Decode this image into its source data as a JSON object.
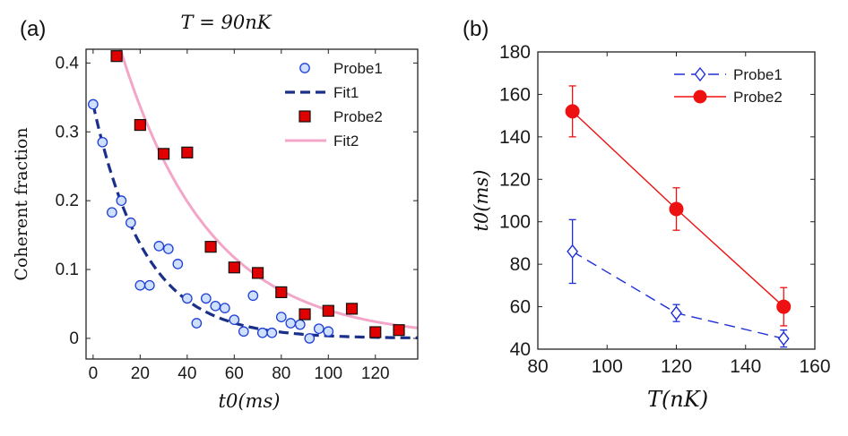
{
  "chart_data": [
    {
      "type": "scatter",
      "panel_label": "(a)",
      "title": "T = 90nK",
      "xlabel": "t0(ms)",
      "ylabel": "Coherent fraction",
      "xlim": [
        -3,
        138
      ],
      "ylim": [
        -0.03,
        0.42
      ],
      "xticks": [
        0,
        20,
        40,
        60,
        80,
        100,
        120
      ],
      "yticks": [
        0,
        0.1,
        0.2,
        0.3,
        0.4
      ],
      "ytick_labels": [
        "0",
        "0.1",
        "0.2",
        "0.3",
        "0.4"
      ],
      "legend_position": "top-right",
      "series": [
        {
          "name": "Probe1",
          "kind": "points",
          "marker": "circle",
          "color": "#1f3fd6",
          "x": [
            0,
            4,
            8,
            12,
            16,
            20,
            24,
            28,
            32,
            36,
            40,
            44,
            48,
            52,
            56,
            60,
            64,
            68,
            72,
            76,
            80,
            84,
            88,
            92,
            96,
            100
          ],
          "y": [
            0.34,
            0.285,
            0.183,
            0.2,
            0.168,
            0.077,
            0.077,
            0.134,
            0.13,
            0.108,
            0.058,
            0.022,
            0.058,
            0.047,
            0.044,
            0.027,
            0.01,
            0.062,
            0.008,
            0.008,
            0.031,
            0.022,
            0.02,
            0.0,
            0.014,
            0.01
          ]
        },
        {
          "name": "Fit1",
          "kind": "curve",
          "style": "dashed",
          "color": "#1a2f8a",
          "model": "a*exp(-x/tau)",
          "params": {
            "a": 0.34,
            "tau": 22
          }
        },
        {
          "name": "Probe2",
          "kind": "points",
          "marker": "square",
          "color": "#e00000",
          "x": [
            10,
            20,
            30,
            40,
            50,
            60,
            70,
            80,
            90,
            100,
            110,
            120,
            130
          ],
          "y": [
            0.41,
            0.31,
            0.268,
            0.27,
            0.133,
            0.103,
            0.095,
            0.067,
            0.035,
            0.04,
            0.043,
            0.009,
            0.012
          ]
        },
        {
          "name": "Fit2",
          "kind": "curve",
          "style": "solid",
          "color": "#f3a6c8",
          "model": "a*exp(-x/tau)",
          "params": {
            "a": 0.57,
            "tau": 38
          }
        }
      ]
    },
    {
      "type": "line",
      "panel_label": "(b)",
      "title": "",
      "xlabel": "T(nK)",
      "ylabel": "t0(ms)",
      "xlim": [
        80,
        160
      ],
      "ylim": [
        40,
        180
      ],
      "xticks": [
        80,
        100,
        120,
        140,
        160
      ],
      "yticks": [
        40,
        60,
        80,
        100,
        120,
        140,
        160,
        180
      ],
      "legend_position": "top-right",
      "series": [
        {
          "name": "Probe1",
          "marker": "diamond",
          "style": "dashed",
          "color": "#1f2fd6",
          "x": [
            90,
            120,
            151
          ],
          "y": [
            86,
            57,
            45
          ],
          "yerr": [
            15,
            4,
            4
          ]
        },
        {
          "name": "Probe2",
          "marker": "circle",
          "style": "solid",
          "color": "#ee1111",
          "x": [
            90,
            120,
            151
          ],
          "y": [
            152,
            106,
            60
          ],
          "yerr": [
            12,
            10,
            9
          ]
        }
      ]
    }
  ]
}
